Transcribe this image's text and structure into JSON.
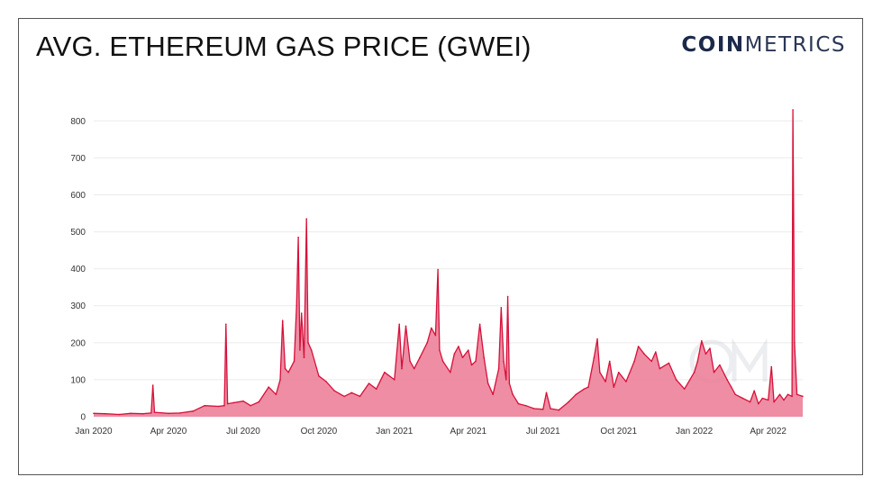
{
  "header": {
    "title": "AVG. ETHEREUM GAS PRICE (GWEI)",
    "logo_bold": "COIN",
    "logo_light": "METRICS"
  },
  "colors": {
    "line": "#d6103a",
    "area": "#ec8199",
    "grid": "#ebebeb",
    "watermark": "#c9ccd6"
  },
  "chart_data": {
    "type": "area",
    "title": "AVG. ETHEREUM GAS PRICE (GWEI)",
    "xlabel": "",
    "ylabel": "",
    "ylim": [
      0,
      830
    ],
    "xlim": [
      "2020-01-01",
      "2022-05-13"
    ],
    "y_ticks": [
      0,
      100,
      200,
      300,
      400,
      500,
      600,
      700,
      800
    ],
    "x_ticks": [
      {
        "date": "2020-01-01",
        "label": "Jan 2020"
      },
      {
        "date": "2020-04-01",
        "label": "Apr 2020"
      },
      {
        "date": "2020-07-01",
        "label": "Jul 2020"
      },
      {
        "date": "2020-10-01",
        "label": "Oct 2020"
      },
      {
        "date": "2021-01-01",
        "label": "Jan 2021"
      },
      {
        "date": "2021-04-01",
        "label": "Apr 2021"
      },
      {
        "date": "2021-07-01",
        "label": "Jul 2021"
      },
      {
        "date": "2021-10-01",
        "label": "Oct 2021"
      },
      {
        "date": "2022-01-01",
        "label": "Jan 2022"
      },
      {
        "date": "2022-04-01",
        "label": "Apr 2022"
      }
    ],
    "grid": true,
    "legend": "none",
    "series": [
      {
        "points": [
          [
            "2020-01-01",
            9
          ],
          [
            "2020-01-15",
            8
          ],
          [
            "2020-02-01",
            6
          ],
          [
            "2020-02-15",
            9
          ],
          [
            "2020-03-01",
            8
          ],
          [
            "2020-03-11",
            10
          ],
          [
            "2020-03-13",
            85
          ],
          [
            "2020-03-15",
            12
          ],
          [
            "2020-04-01",
            9
          ],
          [
            "2020-04-15",
            10
          ],
          [
            "2020-05-01",
            15
          ],
          [
            "2020-05-15",
            30
          ],
          [
            "2020-06-01",
            28
          ],
          [
            "2020-06-08",
            30
          ],
          [
            "2020-06-10",
            250
          ],
          [
            "2020-06-12",
            35
          ],
          [
            "2020-06-20",
            38
          ],
          [
            "2020-07-01",
            42
          ],
          [
            "2020-07-10",
            30
          ],
          [
            "2020-07-20",
            40
          ],
          [
            "2020-08-01",
            80
          ],
          [
            "2020-08-10",
            60
          ],
          [
            "2020-08-15",
            100
          ],
          [
            "2020-08-18",
            260
          ],
          [
            "2020-08-21",
            130
          ],
          [
            "2020-08-25",
            120
          ],
          [
            "2020-09-01",
            150
          ],
          [
            "2020-09-04",
            300
          ],
          [
            "2020-09-06",
            485
          ],
          [
            "2020-09-08",
            180
          ],
          [
            "2020-09-10",
            280
          ],
          [
            "2020-09-13",
            160
          ],
          [
            "2020-09-16",
            535
          ],
          [
            "2020-09-18",
            200
          ],
          [
            "2020-09-22",
            180
          ],
          [
            "2020-10-01",
            110
          ],
          [
            "2020-10-10",
            95
          ],
          [
            "2020-10-20",
            70
          ],
          [
            "2020-11-01",
            55
          ],
          [
            "2020-11-10",
            65
          ],
          [
            "2020-11-20",
            55
          ],
          [
            "2020-12-01",
            90
          ],
          [
            "2020-12-10",
            75
          ],
          [
            "2020-12-20",
            120
          ],
          [
            "2021-01-01",
            100
          ],
          [
            "2021-01-07",
            250
          ],
          [
            "2021-01-10",
            130
          ],
          [
            "2021-01-15",
            245
          ],
          [
            "2021-01-20",
            150
          ],
          [
            "2021-01-25",
            130
          ],
          [
            "2021-02-01",
            160
          ],
          [
            "2021-02-10",
            200
          ],
          [
            "2021-02-15",
            240
          ],
          [
            "2021-02-20",
            220
          ],
          [
            "2021-02-23",
            398
          ],
          [
            "2021-02-25",
            180
          ],
          [
            "2021-03-01",
            150
          ],
          [
            "2021-03-10",
            120
          ],
          [
            "2021-03-15",
            170
          ],
          [
            "2021-03-20",
            190
          ],
          [
            "2021-03-25",
            160
          ],
          [
            "2021-04-01",
            180
          ],
          [
            "2021-04-05",
            140
          ],
          [
            "2021-04-10",
            150
          ],
          [
            "2021-04-15",
            250
          ],
          [
            "2021-04-20",
            160
          ],
          [
            "2021-04-25",
            90
          ],
          [
            "2021-05-01",
            60
          ],
          [
            "2021-05-08",
            130
          ],
          [
            "2021-05-11",
            295
          ],
          [
            "2021-05-14",
            150
          ],
          [
            "2021-05-17",
            100
          ],
          [
            "2021-05-19",
            325
          ],
          [
            "2021-05-21",
            90
          ],
          [
            "2021-05-25",
            60
          ],
          [
            "2021-06-01",
            35
          ],
          [
            "2021-06-10",
            30
          ],
          [
            "2021-06-20",
            22
          ],
          [
            "2021-07-01",
            20
          ],
          [
            "2021-07-05",
            65
          ],
          [
            "2021-07-10",
            22
          ],
          [
            "2021-07-20",
            18
          ],
          [
            "2021-08-01",
            40
          ],
          [
            "2021-08-10",
            60
          ],
          [
            "2021-08-20",
            75
          ],
          [
            "2021-08-25",
            80
          ],
          [
            "2021-09-01",
            160
          ],
          [
            "2021-09-05",
            210
          ],
          [
            "2021-09-08",
            120
          ],
          [
            "2021-09-15",
            95
          ],
          [
            "2021-09-20",
            150
          ],
          [
            "2021-09-25",
            80
          ],
          [
            "2021-10-01",
            120
          ],
          [
            "2021-10-10",
            95
          ],
          [
            "2021-10-20",
            150
          ],
          [
            "2021-10-25",
            190
          ],
          [
            "2021-11-01",
            170
          ],
          [
            "2021-11-10",
            150
          ],
          [
            "2021-11-15",
            175
          ],
          [
            "2021-11-20",
            130
          ],
          [
            "2021-12-01",
            145
          ],
          [
            "2021-12-10",
            100
          ],
          [
            "2021-12-20",
            75
          ],
          [
            "2022-01-01",
            120
          ],
          [
            "2022-01-05",
            150
          ],
          [
            "2022-01-10",
            205
          ],
          [
            "2022-01-15",
            170
          ],
          [
            "2022-01-20",
            185
          ],
          [
            "2022-01-25",
            120
          ],
          [
            "2022-02-01",
            140
          ],
          [
            "2022-02-10",
            100
          ],
          [
            "2022-02-15",
            80
          ],
          [
            "2022-02-20",
            60
          ],
          [
            "2022-03-01",
            50
          ],
          [
            "2022-03-10",
            40
          ],
          [
            "2022-03-15",
            70
          ],
          [
            "2022-03-20",
            35
          ],
          [
            "2022-03-25",
            50
          ],
          [
            "2022-04-01",
            45
          ],
          [
            "2022-04-05",
            135
          ],
          [
            "2022-04-08",
            40
          ],
          [
            "2022-04-15",
            60
          ],
          [
            "2022-04-20",
            45
          ],
          [
            "2022-04-25",
            60
          ],
          [
            "2022-04-30",
            55
          ],
          [
            "2022-05-01",
            830
          ],
          [
            "2022-05-03",
            200
          ],
          [
            "2022-05-06",
            60
          ],
          [
            "2022-05-13",
            55
          ]
        ]
      }
    ]
  }
}
